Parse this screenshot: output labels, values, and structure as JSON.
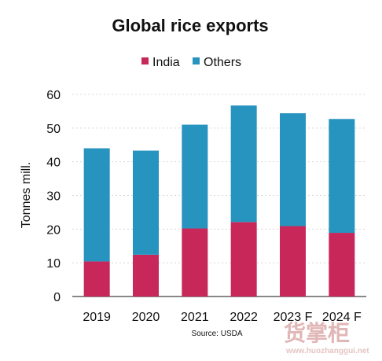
{
  "chart_data": {
    "type": "bar",
    "stacked": true,
    "title": "Global rice exports",
    "categories": [
      "2019",
      "2020",
      "2021",
      "2022",
      "2023 F",
      "2024 F"
    ],
    "series": [
      {
        "name": "India",
        "color": "#c8275a",
        "values": [
          10.4,
          12.4,
          20.2,
          22.1,
          20.9,
          18.9
        ]
      },
      {
        "name": "Others",
        "color": "#2793bf",
        "values": [
          33.6,
          30.9,
          30.8,
          34.6,
          33.5,
          33.8
        ]
      }
    ],
    "ylabel": "Tonnes mill.",
    "ylim": [
      0,
      60
    ],
    "yticks": [
      0,
      10,
      20,
      30,
      40,
      50,
      60
    ],
    "grid": true,
    "legend_position": "top",
    "source": "Source: USDA"
  },
  "watermark": {
    "text": "货掌柜",
    "url": "www.huozhanggui.net"
  }
}
